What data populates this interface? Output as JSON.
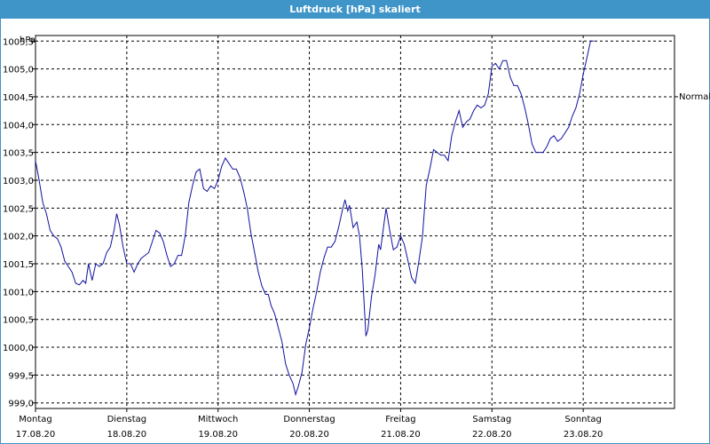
{
  "window": {
    "title": "Luftdruck [hPa] skaliert"
  },
  "chart_data": {
    "type": "line",
    "title": "Luftdruck [hPa] skaliert",
    "ylabel": "hPa",
    "ylim": [
      998.9,
      1005.6
    ],
    "yticks": [
      "999,0",
      "999,5",
      "1000,0",
      "1000,5",
      "1001,0",
      "1001,5",
      "1002,0",
      "1002,5",
      "1003,0",
      "1003,5",
      "1004,0",
      "1004,5",
      "1005,0",
      "1005,5"
    ],
    "xlim_days": [
      0,
      7
    ],
    "x_categories": [
      {
        "day": "Montag",
        "date": "17.08.20"
      },
      {
        "day": "Dienstag",
        "date": "18.08.20"
      },
      {
        "day": "Mittwoch",
        "date": "19.08.20"
      },
      {
        "day": "Donnerstag",
        "date": "20.08.20"
      },
      {
        "day": "Freitag",
        "date": "21.08.20"
      },
      {
        "day": "Samstag",
        "date": "22.08.20"
      },
      {
        "day": "Sonntag",
        "date": "23.08.20"
      }
    ],
    "reference_line": {
      "label": "Normal",
      "value": 1004.5
    },
    "grid": true,
    "series_color": "#1010a0",
    "series": [
      {
        "points": [
          [
            0.0,
            1003.35
          ],
          [
            0.04,
            1003.0
          ],
          [
            0.08,
            1002.6
          ],
          [
            0.12,
            1002.4
          ],
          [
            0.16,
            1002.1
          ],
          [
            0.2,
            1002.0
          ],
          [
            0.24,
            1001.95
          ],
          [
            0.28,
            1001.8
          ],
          [
            0.32,
            1001.55
          ],
          [
            0.36,
            1001.45
          ],
          [
            0.4,
            1001.35
          ],
          [
            0.44,
            1001.15
          ],
          [
            0.48,
            1001.12
          ],
          [
            0.52,
            1001.2
          ],
          [
            0.55,
            1001.15
          ],
          [
            0.58,
            1001.5
          ],
          [
            0.62,
            1001.2
          ],
          [
            0.66,
            1001.5
          ],
          [
            0.7,
            1001.45
          ],
          [
            0.74,
            1001.5
          ],
          [
            0.78,
            1001.7
          ],
          [
            0.82,
            1001.8
          ],
          [
            0.86,
            1002.1
          ],
          [
            0.89,
            1002.4
          ],
          [
            0.92,
            1002.2
          ],
          [
            0.96,
            1001.8
          ],
          [
            1.0,
            1001.5
          ],
          [
            1.04,
            1001.5
          ],
          [
            1.08,
            1001.35
          ],
          [
            1.12,
            1001.5
          ],
          [
            1.16,
            1001.6
          ],
          [
            1.2,
            1001.65
          ],
          [
            1.24,
            1001.7
          ],
          [
            1.28,
            1001.9
          ],
          [
            1.32,
            1002.1
          ],
          [
            1.36,
            1002.05
          ],
          [
            1.4,
            1001.9
          ],
          [
            1.44,
            1001.65
          ],
          [
            1.48,
            1001.45
          ],
          [
            1.52,
            1001.5
          ],
          [
            1.56,
            1001.65
          ],
          [
            1.6,
            1001.65
          ],
          [
            1.64,
            1002.0
          ],
          [
            1.68,
            1002.6
          ],
          [
            1.72,
            1002.9
          ],
          [
            1.76,
            1003.15
          ],
          [
            1.8,
            1003.2
          ],
          [
            1.84,
            1002.85
          ],
          [
            1.88,
            1002.8
          ],
          [
            1.92,
            1002.9
          ],
          [
            1.96,
            1002.85
          ],
          [
            2.0,
            1003.0
          ],
          [
            2.04,
            1003.25
          ],
          [
            2.08,
            1003.4
          ],
          [
            2.12,
            1003.3
          ],
          [
            2.16,
            1003.2
          ],
          [
            2.2,
            1003.2
          ],
          [
            2.24,
            1003.05
          ],
          [
            2.28,
            1002.8
          ],
          [
            2.32,
            1002.5
          ],
          [
            2.36,
            1002.05
          ],
          [
            2.4,
            1001.7
          ],
          [
            2.44,
            1001.35
          ],
          [
            2.48,
            1001.1
          ],
          [
            2.52,
            1000.95
          ],
          [
            2.55,
            1000.95
          ],
          [
            2.58,
            1000.75
          ],
          [
            2.62,
            1000.6
          ],
          [
            2.66,
            1000.35
          ],
          [
            2.7,
            1000.1
          ],
          [
            2.74,
            999.7
          ],
          [
            2.78,
            999.5
          ],
          [
            2.82,
            999.35
          ],
          [
            2.85,
            999.15
          ],
          [
            2.88,
            999.3
          ],
          [
            2.92,
            999.55
          ],
          [
            2.96,
            1000.05
          ],
          [
            3.0,
            1000.35
          ],
          [
            3.04,
            1000.7
          ],
          [
            3.08,
            1001.0
          ],
          [
            3.12,
            1001.35
          ],
          [
            3.16,
            1001.6
          ],
          [
            3.2,
            1001.8
          ],
          [
            3.24,
            1001.8
          ],
          [
            3.28,
            1001.9
          ],
          [
            3.32,
            1002.15
          ],
          [
            3.36,
            1002.45
          ],
          [
            3.39,
            1002.65
          ],
          [
            3.42,
            1002.45
          ],
          [
            3.44,
            1002.55
          ],
          [
            3.48,
            1002.15
          ],
          [
            3.52,
            1002.25
          ],
          [
            3.55,
            1002.0
          ],
          [
            3.58,
            1001.4
          ],
          [
            3.62,
            1000.2
          ],
          [
            3.64,
            1000.3
          ],
          [
            3.68,
            1000.9
          ],
          [
            3.72,
            1001.3
          ],
          [
            3.76,
            1001.85
          ],
          [
            3.78,
            1001.75
          ],
          [
            3.82,
            1002.25
          ],
          [
            3.84,
            1002.5
          ],
          [
            3.88,
            1002.1
          ],
          [
            3.92,
            1001.75
          ],
          [
            3.96,
            1001.8
          ],
          [
            4.0,
            1002.0
          ],
          [
            4.04,
            1001.85
          ],
          [
            4.08,
            1001.55
          ],
          [
            4.12,
            1001.25
          ],
          [
            4.16,
            1001.15
          ],
          [
            4.2,
            1001.55
          ],
          [
            4.24,
            1002.0
          ],
          [
            4.28,
            1002.9
          ],
          [
            4.32,
            1003.2
          ],
          [
            4.36,
            1003.55
          ],
          [
            4.4,
            1003.5
          ],
          [
            4.44,
            1003.45
          ],
          [
            4.48,
            1003.45
          ],
          [
            4.52,
            1003.35
          ],
          [
            4.56,
            1003.8
          ],
          [
            4.6,
            1004.05
          ],
          [
            4.64,
            1004.25
          ],
          [
            4.68,
            1003.95
          ],
          [
            4.72,
            1004.05
          ],
          [
            4.76,
            1004.1
          ],
          [
            4.8,
            1004.25
          ],
          [
            4.84,
            1004.35
          ],
          [
            4.88,
            1004.3
          ],
          [
            4.92,
            1004.35
          ],
          [
            4.96,
            1004.55
          ],
          [
            5.0,
            1005.05
          ],
          [
            5.04,
            1005.1
          ],
          [
            5.08,
            1005.0
          ],
          [
            5.12,
            1005.15
          ],
          [
            5.16,
            1005.15
          ],
          [
            5.2,
            1004.85
          ],
          [
            5.24,
            1004.7
          ],
          [
            5.28,
            1004.7
          ],
          [
            5.32,
            1004.55
          ],
          [
            5.36,
            1004.3
          ],
          [
            5.4,
            1004.0
          ],
          [
            5.44,
            1003.65
          ],
          [
            5.48,
            1003.5
          ],
          [
            5.52,
            1003.5
          ],
          [
            5.56,
            1003.5
          ],
          [
            5.6,
            1003.6
          ],
          [
            5.64,
            1003.75
          ],
          [
            5.68,
            1003.8
          ],
          [
            5.72,
            1003.7
          ],
          [
            5.76,
            1003.75
          ],
          [
            5.8,
            1003.85
          ],
          [
            5.84,
            1003.95
          ],
          [
            5.88,
            1004.15
          ],
          [
            5.92,
            1004.3
          ],
          [
            5.96,
            1004.55
          ],
          [
            6.0,
            1004.9
          ],
          [
            6.04,
            1005.2
          ],
          [
            6.08,
            1005.5
          ],
          [
            6.12,
            1005.5
          ]
        ]
      }
    ]
  }
}
